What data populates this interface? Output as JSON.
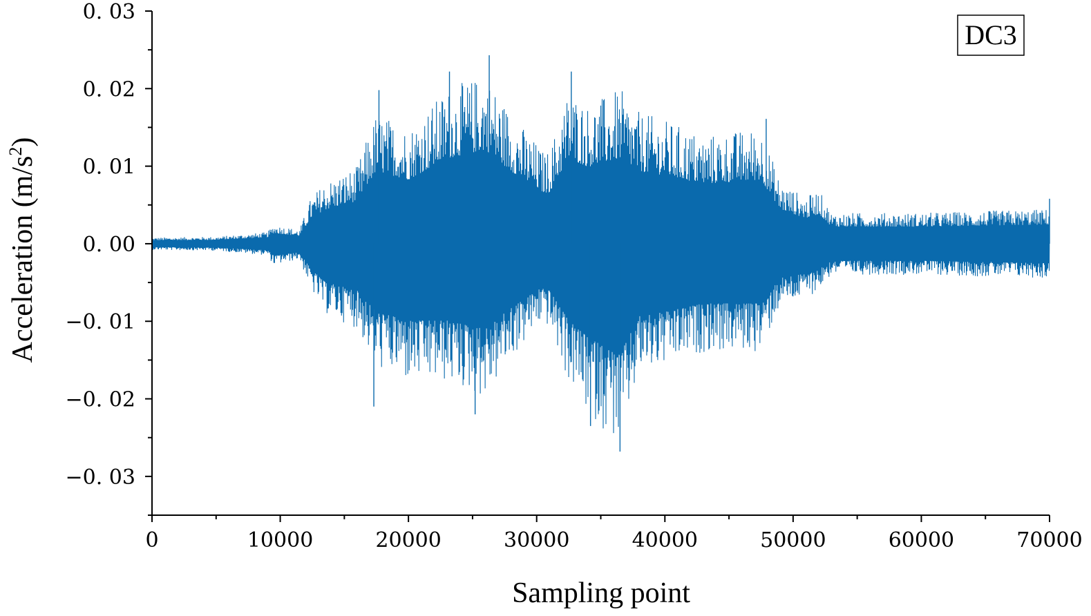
{
  "chart_data": {
    "type": "line",
    "title": "",
    "annotation": "DC3",
    "xlabel": "Sampling point",
    "ylabel": {
      "main": "Acceleration (m/s",
      "superscript": "2",
      "close": ")"
    },
    "xlim": [
      0,
      70000
    ],
    "ylim": [
      -0.035,
      0.03
    ],
    "x_ticks": [
      0,
      10000,
      20000,
      30000,
      40000,
      50000,
      60000,
      70000
    ],
    "x_tick_labels": [
      "0",
      "10000",
      "20000",
      "30000",
      "40000",
      "50000",
      "60000",
      "70000"
    ],
    "x_minor_step": 5000,
    "y_ticks": [
      -0.03,
      -0.02,
      -0.01,
      0.0,
      0.01,
      0.02,
      0.03
    ],
    "y_tick_labels": [
      "−0. 03",
      "−0. 02",
      "−0. 01",
      "0. 00",
      "0. 01",
      "0. 02",
      "0. 03"
    ],
    "y_minor_step": 0.005,
    "grid": false,
    "line_color": "#0a6aad",
    "series": [
      {
        "envelope": [
          {
            "x": 0,
            "upper": 0.0008,
            "lower": -0.0008
          },
          {
            "x": 5000,
            "upper": 0.0009,
            "lower": -0.0009
          },
          {
            "x": 9000,
            "upper": 0.0015,
            "lower": -0.0015
          },
          {
            "x": 9500,
            "upper": 0.0025,
            "lower": -0.0028
          },
          {
            "x": 11500,
            "upper": 0.0018,
            "lower": -0.002
          },
          {
            "x": 12400,
            "upper": 0.006,
            "lower": -0.006
          },
          {
            "x": 13500,
            "upper": 0.008,
            "lower": -0.009
          },
          {
            "x": 16000,
            "upper": 0.01,
            "lower": -0.011
          },
          {
            "x": 17500,
            "upper": 0.017,
            "lower": -0.016
          },
          {
            "x": 20000,
            "upper": 0.015,
            "lower": -0.018
          },
          {
            "x": 23000,
            "upper": 0.02,
            "lower": -0.018
          },
          {
            "x": 26000,
            "upper": 0.022,
            "lower": -0.02
          },
          {
            "x": 28000,
            "upper": 0.017,
            "lower": -0.015
          },
          {
            "x": 30500,
            "upper": 0.012,
            "lower": -0.01
          },
          {
            "x": 31000,
            "upper": 0.012,
            "lower": -0.011
          },
          {
            "x": 32500,
            "upper": 0.02,
            "lower": -0.018
          },
          {
            "x": 34000,
            "upper": 0.018,
            "lower": -0.022
          },
          {
            "x": 36500,
            "upper": 0.02,
            "lower": -0.026
          },
          {
            "x": 38000,
            "upper": 0.017,
            "lower": -0.017
          },
          {
            "x": 40000,
            "upper": 0.016,
            "lower": -0.016
          },
          {
            "x": 43000,
            "upper": 0.014,
            "lower": -0.014
          },
          {
            "x": 47500,
            "upper": 0.015,
            "lower": -0.014
          },
          {
            "x": 49000,
            "upper": 0.008,
            "lower": -0.008
          },
          {
            "x": 51000,
            "upper": 0.006,
            "lower": -0.007
          },
          {
            "x": 52000,
            "upper": 0.007,
            "lower": -0.006
          },
          {
            "x": 53000,
            "upper": 0.004,
            "lower": -0.004
          },
          {
            "x": 60000,
            "upper": 0.004,
            "lower": -0.004
          },
          {
            "x": 70000,
            "upper": 0.0045,
            "lower": -0.0045
          }
        ],
        "peaks": [
          {
            "x": 26300,
            "y": 0.0243
          },
          {
            "x": 36500,
            "y": -0.0268
          },
          {
            "x": 34200,
            "y": -0.0235
          },
          {
            "x": 25200,
            "y": -0.022
          },
          {
            "x": 23200,
            "y": 0.0222
          },
          {
            "x": 32700,
            "y": 0.0222
          },
          {
            "x": 17700,
            "y": 0.0198
          },
          {
            "x": 17300,
            "y": -0.021
          },
          {
            "x": 47900,
            "y": 0.0161
          },
          {
            "x": 70000,
            "y": 0.0058
          }
        ]
      }
    ]
  }
}
